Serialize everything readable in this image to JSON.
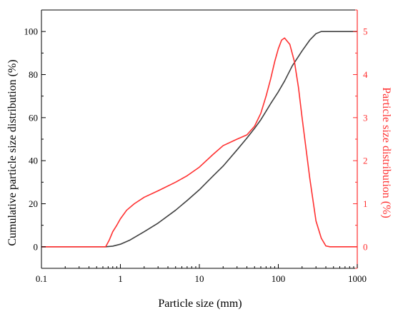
{
  "chart_data": {
    "type": "line",
    "x_scale": "log",
    "xlim": [
      0.1,
      1000
    ],
    "ylim_left": [
      -10,
      110
    ],
    "ylim_right": [
      -0.5,
      5.5
    ],
    "xlabel": "Particle size (mm)",
    "ylabel_left": "Cumulative particle size distribution (%)",
    "ylabel_right": "Particle size distribution (%)",
    "x_ticks": [
      {
        "value": 0.1,
        "label": "0.1"
      },
      {
        "value": 1,
        "label": "1"
      },
      {
        "value": 10,
        "label": "10"
      },
      {
        "value": 100,
        "label": "100"
      },
      {
        "value": 1000,
        "label": "1000"
      }
    ],
    "y_left_ticks": [
      {
        "value": 0,
        "label": "0"
      },
      {
        "value": 20,
        "label": "20"
      },
      {
        "value": 40,
        "label": "40"
      },
      {
        "value": 60,
        "label": "60"
      },
      {
        "value": 80,
        "label": "80"
      },
      {
        "value": 100,
        "label": "100"
      }
    ],
    "y_right_ticks": [
      {
        "value": 0,
        "label": "0"
      },
      {
        "value": 1,
        "label": "1"
      },
      {
        "value": 2,
        "label": "2"
      },
      {
        "value": 3,
        "label": "3"
      },
      {
        "value": 4,
        "label": "4"
      },
      {
        "value": 5,
        "label": "5"
      }
    ],
    "colors": {
      "cumulative": "#404040",
      "distribution": "#ff3030",
      "right_axis": "#ff3030",
      "frame": "#000000"
    },
    "grid": false,
    "series": [
      {
        "id": "cumulative",
        "axis": "left",
        "x": [
          0.1,
          0.5,
          0.65,
          0.8,
          1,
          1.3,
          2,
          3,
          5,
          7,
          10,
          15,
          20,
          30,
          40,
          50,
          60,
          70,
          80,
          100,
          120,
          150,
          200,
          250,
          300,
          350,
          400,
          500,
          1000
        ],
        "y": [
          0,
          0,
          0,
          0.3,
          1.2,
          3,
          7,
          11,
          17,
          21.5,
          26.5,
          33,
          37.5,
          45,
          50.5,
          55,
          59,
          63,
          66.5,
          72,
          77,
          84,
          91,
          96,
          99,
          100,
          100,
          100,
          100
        ]
      },
      {
        "id": "distribution",
        "axis": "right",
        "x": [
          0.1,
          0.5,
          0.65,
          0.72,
          0.8,
          0.9,
          1,
          1.2,
          1.5,
          2,
          3,
          5,
          7,
          10,
          15,
          20,
          30,
          40,
          50,
          60,
          70,
          80,
          90,
          100,
          110,
          120,
          140,
          160,
          180,
          200,
          250,
          300,
          350,
          400,
          450,
          500,
          1000
        ],
        "y": [
          0,
          0,
          0,
          0.15,
          0.35,
          0.5,
          0.65,
          0.85,
          1.0,
          1.15,
          1.3,
          1.5,
          1.65,
          1.85,
          2.15,
          2.35,
          2.5,
          2.6,
          2.8,
          3.1,
          3.5,
          3.9,
          4.3,
          4.6,
          4.8,
          4.85,
          4.7,
          4.3,
          3.7,
          3.0,
          1.6,
          0.6,
          0.2,
          0.02,
          0,
          0,
          0
        ]
      }
    ]
  }
}
